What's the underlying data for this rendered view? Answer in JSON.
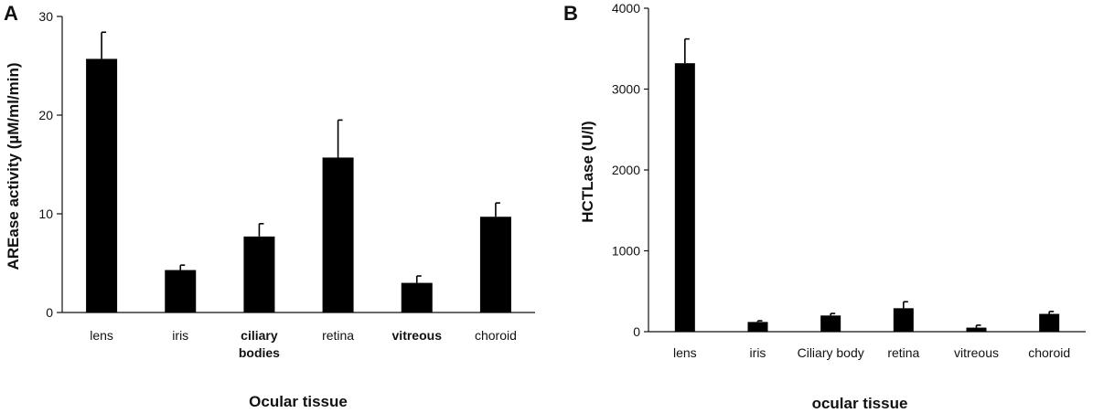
{
  "chart_data": [
    {
      "type": "bar",
      "panel_label": "A",
      "categories": [
        "lens",
        "iris",
        "ciliary\nbodies",
        "retina",
        "vitreous",
        "choroid"
      ],
      "values": [
        25.7,
        4.3,
        7.7,
        15.7,
        3.0,
        9.7
      ],
      "errors": [
        2.7,
        0.5,
        1.3,
        3.8,
        0.7,
        1.4
      ],
      "xlabel": "Ocular tissue",
      "ylabel": "AREase activity (µM/ml/min)",
      "ylim": [
        0,
        30
      ],
      "yticks": [
        0,
        10,
        20,
        30
      ],
      "bold_categories": [
        false,
        false,
        true,
        false,
        true,
        false
      ],
      "grid": false,
      "color": "#000000"
    },
    {
      "type": "bar",
      "panel_label": "B",
      "categories": [
        "lens",
        "iris",
        "Ciliary body",
        "retina",
        "vitreous",
        "choroid"
      ],
      "values": [
        3320,
        120,
        200,
        290,
        50,
        220
      ],
      "errors": [
        300,
        15,
        25,
        80,
        30,
        30
      ],
      "xlabel": "ocular tissue",
      "ylabel": "HCTLase (U/l)",
      "ylim": [
        0,
        4000
      ],
      "yticks": [
        0,
        1000,
        2000,
        3000,
        4000
      ],
      "bold_categories": [
        false,
        false,
        false,
        false,
        false,
        false
      ],
      "grid": false,
      "color": "#000000"
    }
  ]
}
